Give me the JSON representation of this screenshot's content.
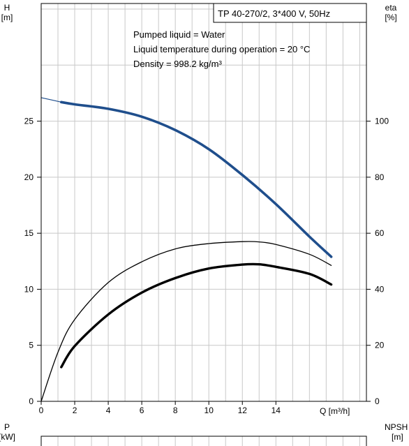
{
  "chart_data": {
    "type": "line",
    "model_label": "TP 40-270/2, 3*400 V, 50Hz",
    "notes": [
      "Pumped liquid = Water",
      "Liquid temperature during operation = 20 °C",
      "Density = 998.2 kg/m³"
    ],
    "xlabel": "Q [m³/h]",
    "xlim": [
      0,
      19.4
    ],
    "x_ticks": [
      0,
      2,
      4,
      6,
      8,
      10,
      12,
      14
    ],
    "left_axis": {
      "title": [
        "H",
        "[m]"
      ],
      "ylim": [
        0,
        35.5
      ],
      "ticks": [
        0,
        5,
        10,
        15,
        20,
        25
      ]
    },
    "right_axis": {
      "title": [
        "eta",
        "[%]"
      ],
      "ylim": [
        0,
        142
      ],
      "ticks": [
        0,
        20,
        40,
        60,
        80,
        100
      ]
    },
    "lower_left_title": [
      "P",
      "[kW]"
    ],
    "lower_right_title": [
      "NPSH",
      "[m]"
    ],
    "grid": true,
    "colors": {
      "head": "#1f4e8c",
      "grid": "#c8c8c8",
      "efficiency": "#000000"
    },
    "series": [
      {
        "axis": "left",
        "style": "thin-blue",
        "x": [
          0,
          1.2
        ],
        "y": [
          27.1,
          26.7
        ]
      },
      {
        "axis": "left",
        "style": "thick-blue",
        "x": [
          1.2,
          2,
          4,
          6,
          8,
          10,
          12,
          14,
          16,
          17.3
        ],
        "y": [
          26.7,
          26.5,
          26.1,
          25.4,
          24.2,
          22.5,
          20.2,
          17.6,
          14.7,
          12.9
        ]
      },
      {
        "axis": "right",
        "style": "thin-black",
        "x": [
          0,
          1,
          2,
          4,
          6,
          8,
          10,
          12,
          13,
          14,
          16,
          17.3
        ],
        "y": [
          0,
          17.5,
          29.2,
          42.4,
          49.8,
          54.4,
          56.3,
          57,
          56.9,
          56,
          52.5,
          48.5
        ]
      },
      {
        "axis": "right",
        "style": "thick-black",
        "x": [
          1.2,
          2,
          4,
          6,
          8,
          10,
          12,
          13,
          14,
          16,
          17.3
        ],
        "y": [
          12.2,
          19.7,
          31,
          38.8,
          44,
          47.4,
          48.8,
          48.9,
          48,
          45.5,
          41.7
        ]
      }
    ]
  }
}
